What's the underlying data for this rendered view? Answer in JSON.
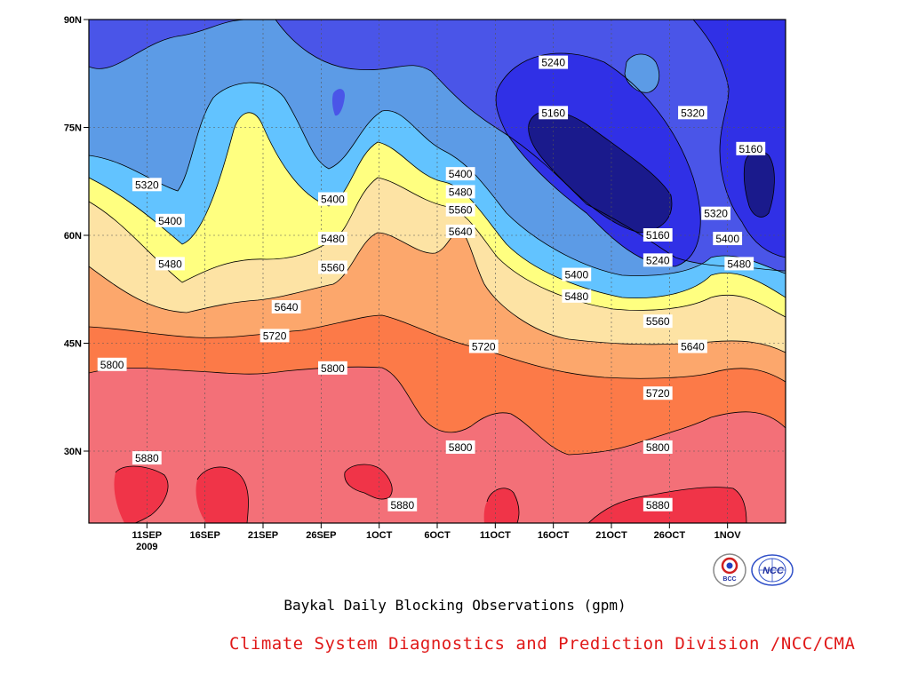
{
  "chart_data": {
    "type": "contour",
    "title": "Baykal Daily Blocking Observations (gpm)",
    "units": "gpm",
    "x_tick_labels": [
      "11SEP",
      "16SEP",
      "21SEP",
      "26SEP",
      "1OCT",
      "6OCT",
      "11OCT",
      "16OCT",
      "21OCT",
      "26OCT",
      "1NOV"
    ],
    "x_year_label": "2009",
    "x_range": [
      "2009-09-06",
      "2009-11-05"
    ],
    "y_tick_labels": [
      "30N",
      "45N",
      "60N",
      "75N",
      "90N"
    ],
    "y_range_deg": [
      20,
      90
    ],
    "contour_levels": [
      5160,
      5240,
      5320,
      5400,
      5480,
      5560,
      5640,
      5720,
      5800,
      5880
    ],
    "fill_colors": {
      "below_5160": "#1a1a8c",
      "5160_5240": "#3030e6",
      "5240_5320": "#4a55e8",
      "5320_5400": "#5c9be6",
      "5400_5480": "#62c3ff",
      "5480_5560": "#ffff80",
      "5560_5640": "#fde3a4",
      "5640_5720": "#fca76c",
      "5720_5800": "#fc7a48",
      "5800_5880": "#f37078",
      "above_5880": "#f03448"
    },
    "contour_labels": [
      {
        "date": "2009-09-11",
        "lat": 67,
        "value": "5320"
      },
      {
        "date": "2009-09-13",
        "lat": 62,
        "value": "5400"
      },
      {
        "date": "2009-09-13",
        "lat": 56,
        "value": "5480"
      },
      {
        "date": "2009-09-23",
        "lat": 50,
        "value": "5640"
      },
      {
        "date": "2009-09-22",
        "lat": 46,
        "value": "5720"
      },
      {
        "date": "2009-09-08",
        "lat": 42,
        "value": "5800"
      },
      {
        "date": "2009-09-11",
        "lat": 29,
        "value": "5880"
      },
      {
        "date": "2009-09-27",
        "lat": 65,
        "value": "5400"
      },
      {
        "date": "2009-09-27",
        "lat": 59.5,
        "value": "5480"
      },
      {
        "date": "2009-09-27",
        "lat": 55.5,
        "value": "5560"
      },
      {
        "date": "2009-09-27",
        "lat": 41.5,
        "value": "5800"
      },
      {
        "date": "2009-10-03",
        "lat": 22.5,
        "value": "5880"
      },
      {
        "date": "2009-10-08",
        "lat": 68.5,
        "value": "5400"
      },
      {
        "date": "2009-10-08",
        "lat": 66,
        "value": "5480"
      },
      {
        "date": "2009-10-08",
        "lat": 63.5,
        "value": "5560"
      },
      {
        "date": "2009-10-08",
        "lat": 60.5,
        "value": "5640"
      },
      {
        "date": "2009-10-10",
        "lat": 44.5,
        "value": "5720"
      },
      {
        "date": "2009-10-08",
        "lat": 30.5,
        "value": "5800"
      },
      {
        "date": "2009-10-16",
        "lat": 84,
        "value": "5240"
      },
      {
        "date": "2009-10-16",
        "lat": 77,
        "value": "5160"
      },
      {
        "date": "2009-10-18",
        "lat": 54.5,
        "value": "5400"
      },
      {
        "date": "2009-10-18",
        "lat": 51.5,
        "value": "5480"
      },
      {
        "date": "2009-10-25",
        "lat": 60,
        "value": "5160"
      },
      {
        "date": "2009-10-25",
        "lat": 56.5,
        "value": "5240"
      },
      {
        "date": "2009-10-25",
        "lat": 48,
        "value": "5560"
      },
      {
        "date": "2009-10-25",
        "lat": 38,
        "value": "5720"
      },
      {
        "date": "2009-10-25",
        "lat": 30.5,
        "value": "5800"
      },
      {
        "date": "2009-10-25",
        "lat": 22.5,
        "value": "5880"
      },
      {
        "date": "2009-10-28",
        "lat": 77,
        "value": "5320"
      },
      {
        "date": "2009-10-28",
        "lat": 44.5,
        "value": "5640"
      },
      {
        "date": "2009-10-30",
        "lat": 63,
        "value": "5320"
      },
      {
        "date": "2009-10-31",
        "lat": 59.5,
        "value": "5400"
      },
      {
        "date": "2009-11-01",
        "lat": 56,
        "value": "5480"
      },
      {
        "date": "2009-11-02",
        "lat": 72,
        "value": "5160"
      }
    ]
  },
  "page": {
    "title": "Baykal Daily Blocking Observations (gpm)",
    "credit": "Climate System Diagnostics and Prediction Division /NCC/CMA",
    "logo_left_text": "BCC",
    "logo_right_text": "NCC"
  }
}
